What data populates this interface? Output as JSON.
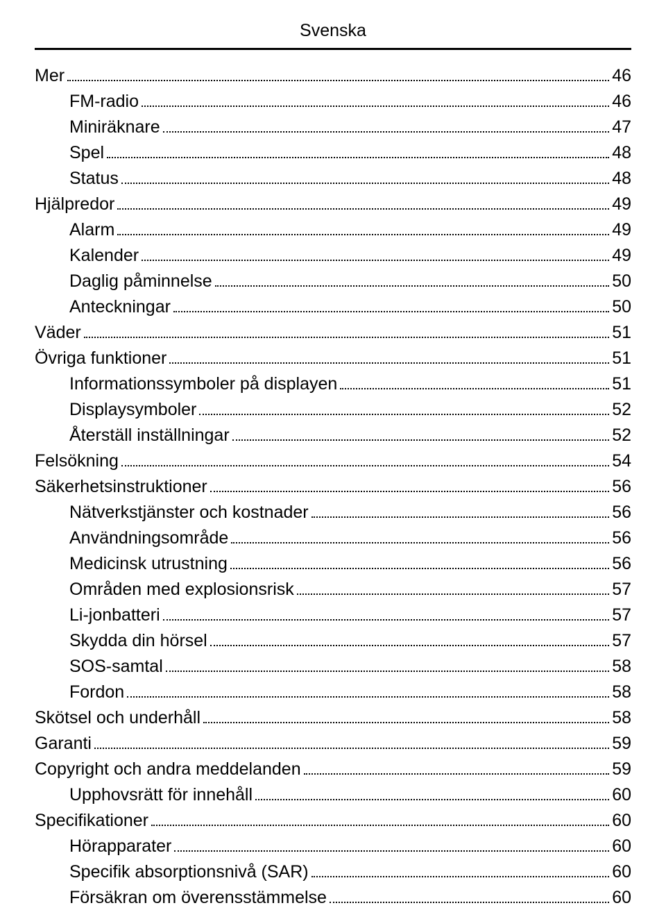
{
  "header": {
    "title": "Svenska"
  },
  "toc": {
    "entries": [
      {
        "label": "Mer",
        "page": "46",
        "indent": 0
      },
      {
        "label": "FM-radio",
        "page": "46",
        "indent": 1
      },
      {
        "label": "Miniräknare",
        "page": "47",
        "indent": 1
      },
      {
        "label": "Spel",
        "page": "48",
        "indent": 1
      },
      {
        "label": "Status",
        "page": "48",
        "indent": 1
      },
      {
        "label": "Hjälpredor",
        "page": "49",
        "indent": 0
      },
      {
        "label": "Alarm",
        "page": "49",
        "indent": 1
      },
      {
        "label": "Kalender",
        "page": "49",
        "indent": 1
      },
      {
        "label": "Daglig påminnelse",
        "page": "50",
        "indent": 1
      },
      {
        "label": "Anteckningar",
        "page": "50",
        "indent": 1
      },
      {
        "label": "Väder",
        "page": "51",
        "indent": 0
      },
      {
        "label": "Övriga funktioner",
        "page": "51",
        "indent": 0
      },
      {
        "label": "Informationssymboler på displayen",
        "page": "51",
        "indent": 1
      },
      {
        "label": "Displaysymboler",
        "page": "52",
        "indent": 1
      },
      {
        "label": "Återställ inställningar",
        "page": "52",
        "indent": 1
      },
      {
        "label": "Felsökning",
        "page": "54",
        "indent": 0
      },
      {
        "label": "Säkerhetsinstruktioner",
        "page": "56",
        "indent": 0
      },
      {
        "label": "Nätverkstjänster och kostnader",
        "page": "56",
        "indent": 1
      },
      {
        "label": "Användningsområde",
        "page": "56",
        "indent": 1
      },
      {
        "label": "Medicinsk utrustning",
        "page": "56",
        "indent": 1
      },
      {
        "label": "Områden med explosionsrisk",
        "page": "57",
        "indent": 1
      },
      {
        "label": "Li-jonbatteri",
        "page": "57",
        "indent": 1
      },
      {
        "label": "Skydda din hörsel",
        "page": "57",
        "indent": 1
      },
      {
        "label": "SOS-samtal",
        "page": "58",
        "indent": 1
      },
      {
        "label": "Fordon",
        "page": "58",
        "indent": 1
      },
      {
        "label": "Skötsel och underhåll",
        "page": "58",
        "indent": 0
      },
      {
        "label": "Garanti",
        "page": "59",
        "indent": 0
      },
      {
        "label": "Copyright och andra meddelanden",
        "page": "59",
        "indent": 0
      },
      {
        "label": "Upphovsrätt för innehåll",
        "page": "60",
        "indent": 1
      },
      {
        "label": "Specifikationer",
        "page": "60",
        "indent": 0
      },
      {
        "label": "Hörapparater",
        "page": "60",
        "indent": 1
      },
      {
        "label": "Specifik absorptionsnivå (SAR)",
        "page": "60",
        "indent": 1
      },
      {
        "label": "Försäkran om överensstämmelse",
        "page": "60",
        "indent": 1
      }
    ]
  }
}
